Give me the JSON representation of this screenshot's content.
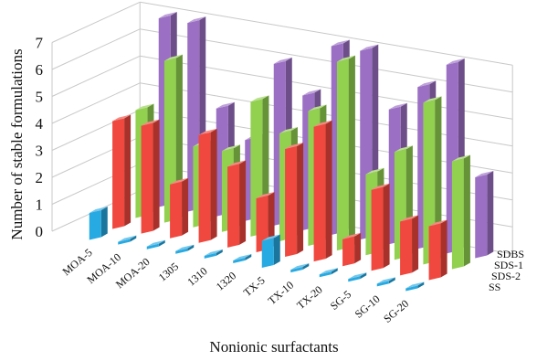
{
  "chart_data": {
    "type": "bar",
    "style": "3d-clustered-column",
    "xlabel": "Nonionic surfactants",
    "ylabel": "Number of stable formulations",
    "ylim": [
      0,
      7
    ],
    "yticks": [
      0,
      1,
      2,
      3,
      4,
      5,
      6,
      7
    ],
    "grid": true,
    "categories": [
      "MOA-5",
      "MOA-10",
      "MOA-20",
      "1305",
      "1310",
      "1320",
      "TX-5",
      "TX-10",
      "TX-20",
      "SG-5",
      "SG-10",
      "SG-20"
    ],
    "series": [
      {
        "name": "SS",
        "color": "#27a9e1",
        "values": [
          1,
          0,
          0,
          0,
          0,
          0,
          1,
          0,
          0,
          0,
          0,
          0
        ]
      },
      {
        "name": "SDS-2",
        "color": "#f0483e",
        "values": [
          4,
          4,
          2,
          4,
          3,
          2,
          4,
          5,
          1,
          3,
          2,
          2
        ]
      },
      {
        "name": "SDS-1",
        "color": "#92d050",
        "values": [
          4,
          6,
          3,
          3,
          5,
          4,
          5,
          7,
          3,
          4,
          6,
          4
        ]
      },
      {
        "name": "SDBS",
        "color": "#9b6fc4",
        "values": [
          7,
          7,
          4,
          3,
          6,
          5,
          7,
          7,
          5,
          6,
          7,
          3
        ]
      }
    ]
  }
}
